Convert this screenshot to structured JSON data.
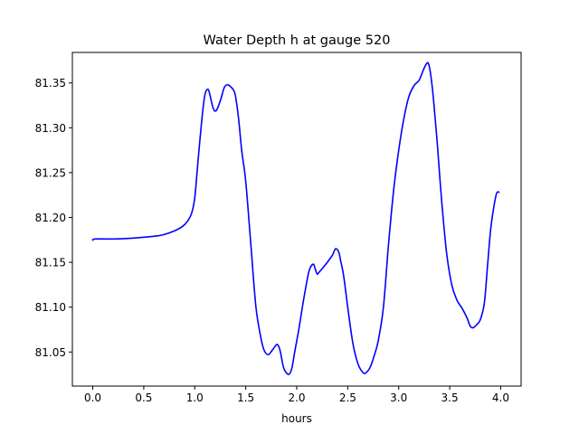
{
  "chart_data": {
    "type": "line",
    "title": "Water Depth h at gauge 520",
    "xlabel": "hours",
    "ylabel": "",
    "xlim": [
      -0.2,
      4.2
    ],
    "ylim": [
      81.012,
      81.384
    ],
    "xticks": [
      0.0,
      0.5,
      1.0,
      1.5,
      2.0,
      2.5,
      3.0,
      3.5,
      4.0
    ],
    "xtick_labels": [
      "0.0",
      "0.5",
      "1.0",
      "1.5",
      "2.0",
      "2.5",
      "3.0",
      "3.5",
      "4.0"
    ],
    "yticks": [
      81.05,
      81.1,
      81.15,
      81.2,
      81.25,
      81.3,
      81.35
    ],
    "ytick_labels": [
      "81.05",
      "81.10",
      "81.15",
      "81.20",
      "81.25",
      "81.30",
      "81.35"
    ],
    "grid": false,
    "series": [
      {
        "name": "",
        "color": "#0000ff",
        "x": [
          0.0,
          0.02,
          0.2,
          0.4,
          0.6,
          0.7,
          0.8,
          0.88,
          0.93,
          0.97,
          1.0,
          1.03,
          1.07,
          1.1,
          1.13,
          1.15,
          1.18,
          1.21,
          1.25,
          1.29,
          1.32,
          1.35,
          1.38,
          1.4,
          1.43,
          1.46,
          1.5,
          1.55,
          1.6,
          1.65,
          1.68,
          1.72,
          1.76,
          1.8,
          1.82,
          1.84,
          1.86,
          1.88,
          1.92,
          1.95,
          1.98,
          2.02,
          2.07,
          2.12,
          2.16,
          2.18,
          2.2,
          2.22,
          2.25,
          2.3,
          2.35,
          2.38,
          2.41,
          2.43,
          2.46,
          2.5,
          2.55,
          2.6,
          2.65,
          2.68,
          2.72,
          2.76,
          2.8,
          2.85,
          2.9,
          2.95,
          3.0,
          3.05,
          3.1,
          3.15,
          3.2,
          3.24,
          3.27,
          3.29,
          3.31,
          3.34,
          3.38,
          3.42,
          3.47,
          3.52,
          3.57,
          3.62,
          3.67,
          3.7,
          3.73,
          3.76,
          3.8,
          3.84,
          3.87,
          3.9,
          3.93,
          3.96,
          3.99
        ],
        "y": [
          81.174,
          81.176,
          81.176,
          81.177,
          81.179,
          81.181,
          81.185,
          81.19,
          81.196,
          81.205,
          81.222,
          81.26,
          81.31,
          81.337,
          81.343,
          81.336,
          81.322,
          81.319,
          81.33,
          81.345,
          81.348,
          81.346,
          81.342,
          81.335,
          81.31,
          81.275,
          81.24,
          81.17,
          81.1,
          81.065,
          81.052,
          81.047,
          81.052,
          81.058,
          81.057,
          81.05,
          81.038,
          81.03,
          81.025,
          81.031,
          81.05,
          81.075,
          81.11,
          81.14,
          81.148,
          81.143,
          81.137,
          81.139,
          81.143,
          81.15,
          81.158,
          81.165,
          81.162,
          81.152,
          81.135,
          81.1,
          81.06,
          81.037,
          81.027,
          81.027,
          81.033,
          81.046,
          81.063,
          81.1,
          81.17,
          81.23,
          81.275,
          81.31,
          81.335,
          81.347,
          81.353,
          81.364,
          81.371,
          81.372,
          81.362,
          81.333,
          81.28,
          81.22,
          81.16,
          81.125,
          81.108,
          81.099,
          81.088,
          81.079,
          81.077,
          81.08,
          81.086,
          81.105,
          81.145,
          81.185,
          81.21,
          81.227,
          81.228
        ]
      }
    ]
  }
}
